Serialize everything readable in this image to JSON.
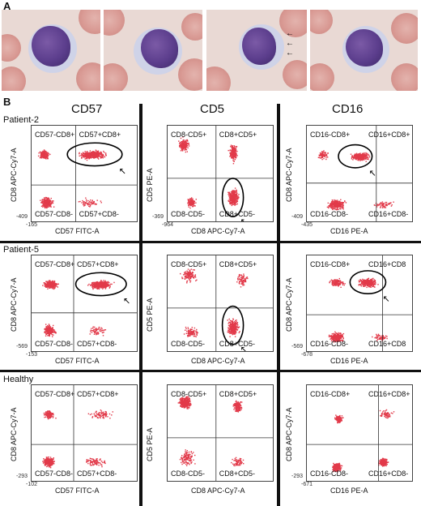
{
  "panel_a": {
    "letter": "A"
  },
  "panel_b": {
    "letter": "B"
  },
  "columns": [
    "CD57",
    "CD5",
    "CD16"
  ],
  "rows": [
    "Patient-2",
    "Patient-5",
    "Healthy"
  ],
  "plots": [
    {
      "id": "p2-cd57",
      "x_label": "CD57 FITC-A",
      "y_label": "CD8 APC-Cy7-A",
      "q": [
        "CD57-CD8+",
        "CD57+CD8+",
        "CD57-CD8-",
        "CD57+CD8-"
      ],
      "y_min": "-409",
      "x_min": "-165"
    },
    {
      "id": "p2-cd5",
      "x_label": "CD8 APC-Cy7-A",
      "y_label": "CD5 PE-A",
      "q": [
        "CD8-CD5+",
        "CD8+CD5+",
        "CD8-CD5-",
        "CD8+CD5-"
      ],
      "y_min": "-369",
      "x_min": "-964"
    },
    {
      "id": "p2-cd16",
      "x_label": "CD16 PE-A",
      "y_label": "CD8 APC-Cy7-A",
      "q": [
        "CD16-CD8+",
        "CD16+CD8+",
        "CD16-CD8-",
        "CD16+CD8-"
      ],
      "y_min": "-409",
      "x_min": "-435"
    },
    {
      "id": "p5-cd57",
      "x_label": "CD57 FITC-A",
      "y_label": "CD8 APC-Cy7-A",
      "q": [
        "CD57-CD8+",
        "CD57+CD8+",
        "CD57-CD8-",
        "CD57+CD8-"
      ],
      "y_min": "-569",
      "x_min": "-153"
    },
    {
      "id": "p5-cd5",
      "x_label": "CD8 APC-Cy7-A",
      "y_label": "CD5 PE-A",
      "q": [
        "CD8-CD5+",
        "CD8+CD5+",
        "CD8-CD5-",
        "CD8+CD5-"
      ],
      "y_min": "",
      "x_min": ""
    },
    {
      "id": "p5-cd16",
      "x_label": "CD16 PE-A",
      "y_label": "CD8 APC-Cy7-A",
      "q": [
        "CD16-CD8+",
        "CD16+CD8",
        "CD16-CD8-",
        "CD16+CD8"
      ],
      "y_min": "-569",
      "x_min": "-678"
    },
    {
      "id": "h-cd57",
      "x_label": "CD57 FITC-A",
      "y_label": "CD8 APC-Cy7-A",
      "q": [
        "CD57-CD8+",
        "CD57+CD8+",
        "CD57-CD8-",
        "CD57+CD8-"
      ],
      "y_min": "-293",
      "x_min": "-102"
    },
    {
      "id": "h-cd5",
      "x_label": "CD8 APC-Cy7-A",
      "y_label": "CD5 PE-A",
      "q": [
        "CD8-CD5+",
        "CD8+CD5+",
        "CD8-CD5-",
        "CD8+CD5-"
      ],
      "y_min": "",
      "x_min": ""
    },
    {
      "id": "h-cd16",
      "x_label": "CD16 PE-A",
      "y_label": "CD8 APC-Cy7-A",
      "q": [
        "CD16-CD8+",
        "CD16+CD8+",
        "CD16-CD8-",
        "CD16+CD8-"
      ],
      "y_min": "-293",
      "x_min": "-671"
    }
  ],
  "colors": {
    "dots": "#e23a4a",
    "frame": "#444444",
    "divider": "#111111",
    "background": "#ffffff"
  }
}
